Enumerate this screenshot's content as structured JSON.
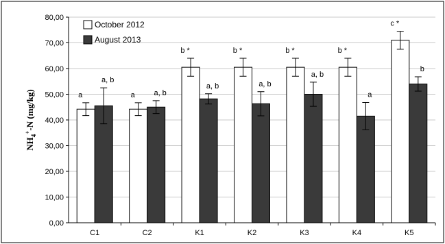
{
  "chart_data": {
    "type": "bar",
    "ylabel": {
      "main": "NH",
      "sub": "4",
      "sup": "+",
      "rest": "-N (mg/kg)"
    },
    "ylim": [
      0,
      80
    ],
    "yticks": [
      "0,00",
      "10,00",
      "20,00",
      "30,00",
      "40,00",
      "50,00",
      "60,00",
      "70,00",
      "80,00"
    ],
    "grid": true,
    "legend_position": "top-left",
    "categories": [
      "C1",
      "C2",
      "K1",
      "K2",
      "K3",
      "K4",
      "K5"
    ],
    "series": [
      {
        "name": "October 2012",
        "color": "#ffffff",
        "values": [
          44.2,
          44.2,
          60.5,
          60.5,
          60.5,
          60.5,
          71.0
        ],
        "errors": [
          2.5,
          2.5,
          3.5,
          3.5,
          3.5,
          3.5,
          3.5
        ],
        "labels": [
          "a",
          "a",
          "b *",
          "b *",
          "b *",
          "b *",
          "c *"
        ]
      },
      {
        "name": "August 2013",
        "color": "#3a3a3a",
        "values": [
          45.5,
          45.0,
          48.2,
          46.3,
          50.0,
          41.5,
          54.0
        ],
        "errors": [
          7.0,
          2.5,
          2.0,
          4.7,
          4.7,
          5.3,
          2.8
        ],
        "labels": [
          "a, b",
          "a, b",
          "a, b",
          "a, b",
          "a, b",
          "a",
          "b"
        ]
      }
    ]
  }
}
